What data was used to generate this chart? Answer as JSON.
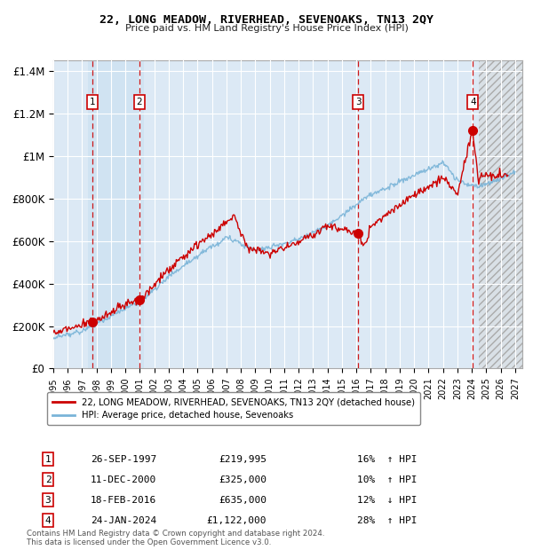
{
  "title": "22, LONG MEADOW, RIVERHEAD, SEVENOAKS, TN13 2QY",
  "subtitle": "Price paid vs. HM Land Registry's House Price Index (HPI)",
  "ylabel_ticks": [
    "£0",
    "£200K",
    "£400K",
    "£600K",
    "£800K",
    "£1M",
    "£1.2M",
    "£1.4M"
  ],
  "ytick_values": [
    0,
    200000,
    400000,
    600000,
    800000,
    1000000,
    1200000,
    1400000
  ],
  "ylim": [
    0,
    1450000
  ],
  "xlim_start": 1995.0,
  "xlim_end": 2027.5,
  "transactions": [
    {
      "num": 1,
      "date": "26-SEP-1997",
      "price": 219995,
      "price_str": "£219,995",
      "pct": "16%",
      "dir": "↑",
      "year": 1997.73
    },
    {
      "num": 2,
      "date": "11-DEC-2000",
      "price": 325000,
      "price_str": "£325,000",
      "pct": "10%",
      "dir": "↑",
      "year": 2000.95
    },
    {
      "num": 3,
      "date": "18-FEB-2016",
      "price": 635000,
      "price_str": "£635,000",
      "pct": "12%",
      "dir": "↓",
      "year": 2016.13
    },
    {
      "num": 4,
      "date": "24-JAN-2024",
      "price": 1122000,
      "price_str": "£1,122,000",
      "pct": "28%",
      "dir": "↑",
      "year": 2024.07
    }
  ],
  "legend_line1": "22, LONG MEADOW, RIVERHEAD, SEVENOAKS, TN13 2QY (detached house)",
  "legend_line2": "HPI: Average price, detached house, Sevenoaks",
  "footer1": "Contains HM Land Registry data © Crown copyright and database right 2024.",
  "footer2": "This data is licensed under the Open Government Licence v3.0.",
  "background_chart": "#dce9f5",
  "grid_color": "#ffffff",
  "hpi_color": "#7ab4d8",
  "price_color": "#cc0000",
  "marker_color": "#cc0000",
  "dashed_color": "#cc0000",
  "label_box_color": "#cc0000",
  "future_start": 2024.5,
  "shade1_start": 1997.4,
  "shade1_end": 2001.3,
  "shade4_start": 2023.8,
  "shade4_end": 2024.5
}
